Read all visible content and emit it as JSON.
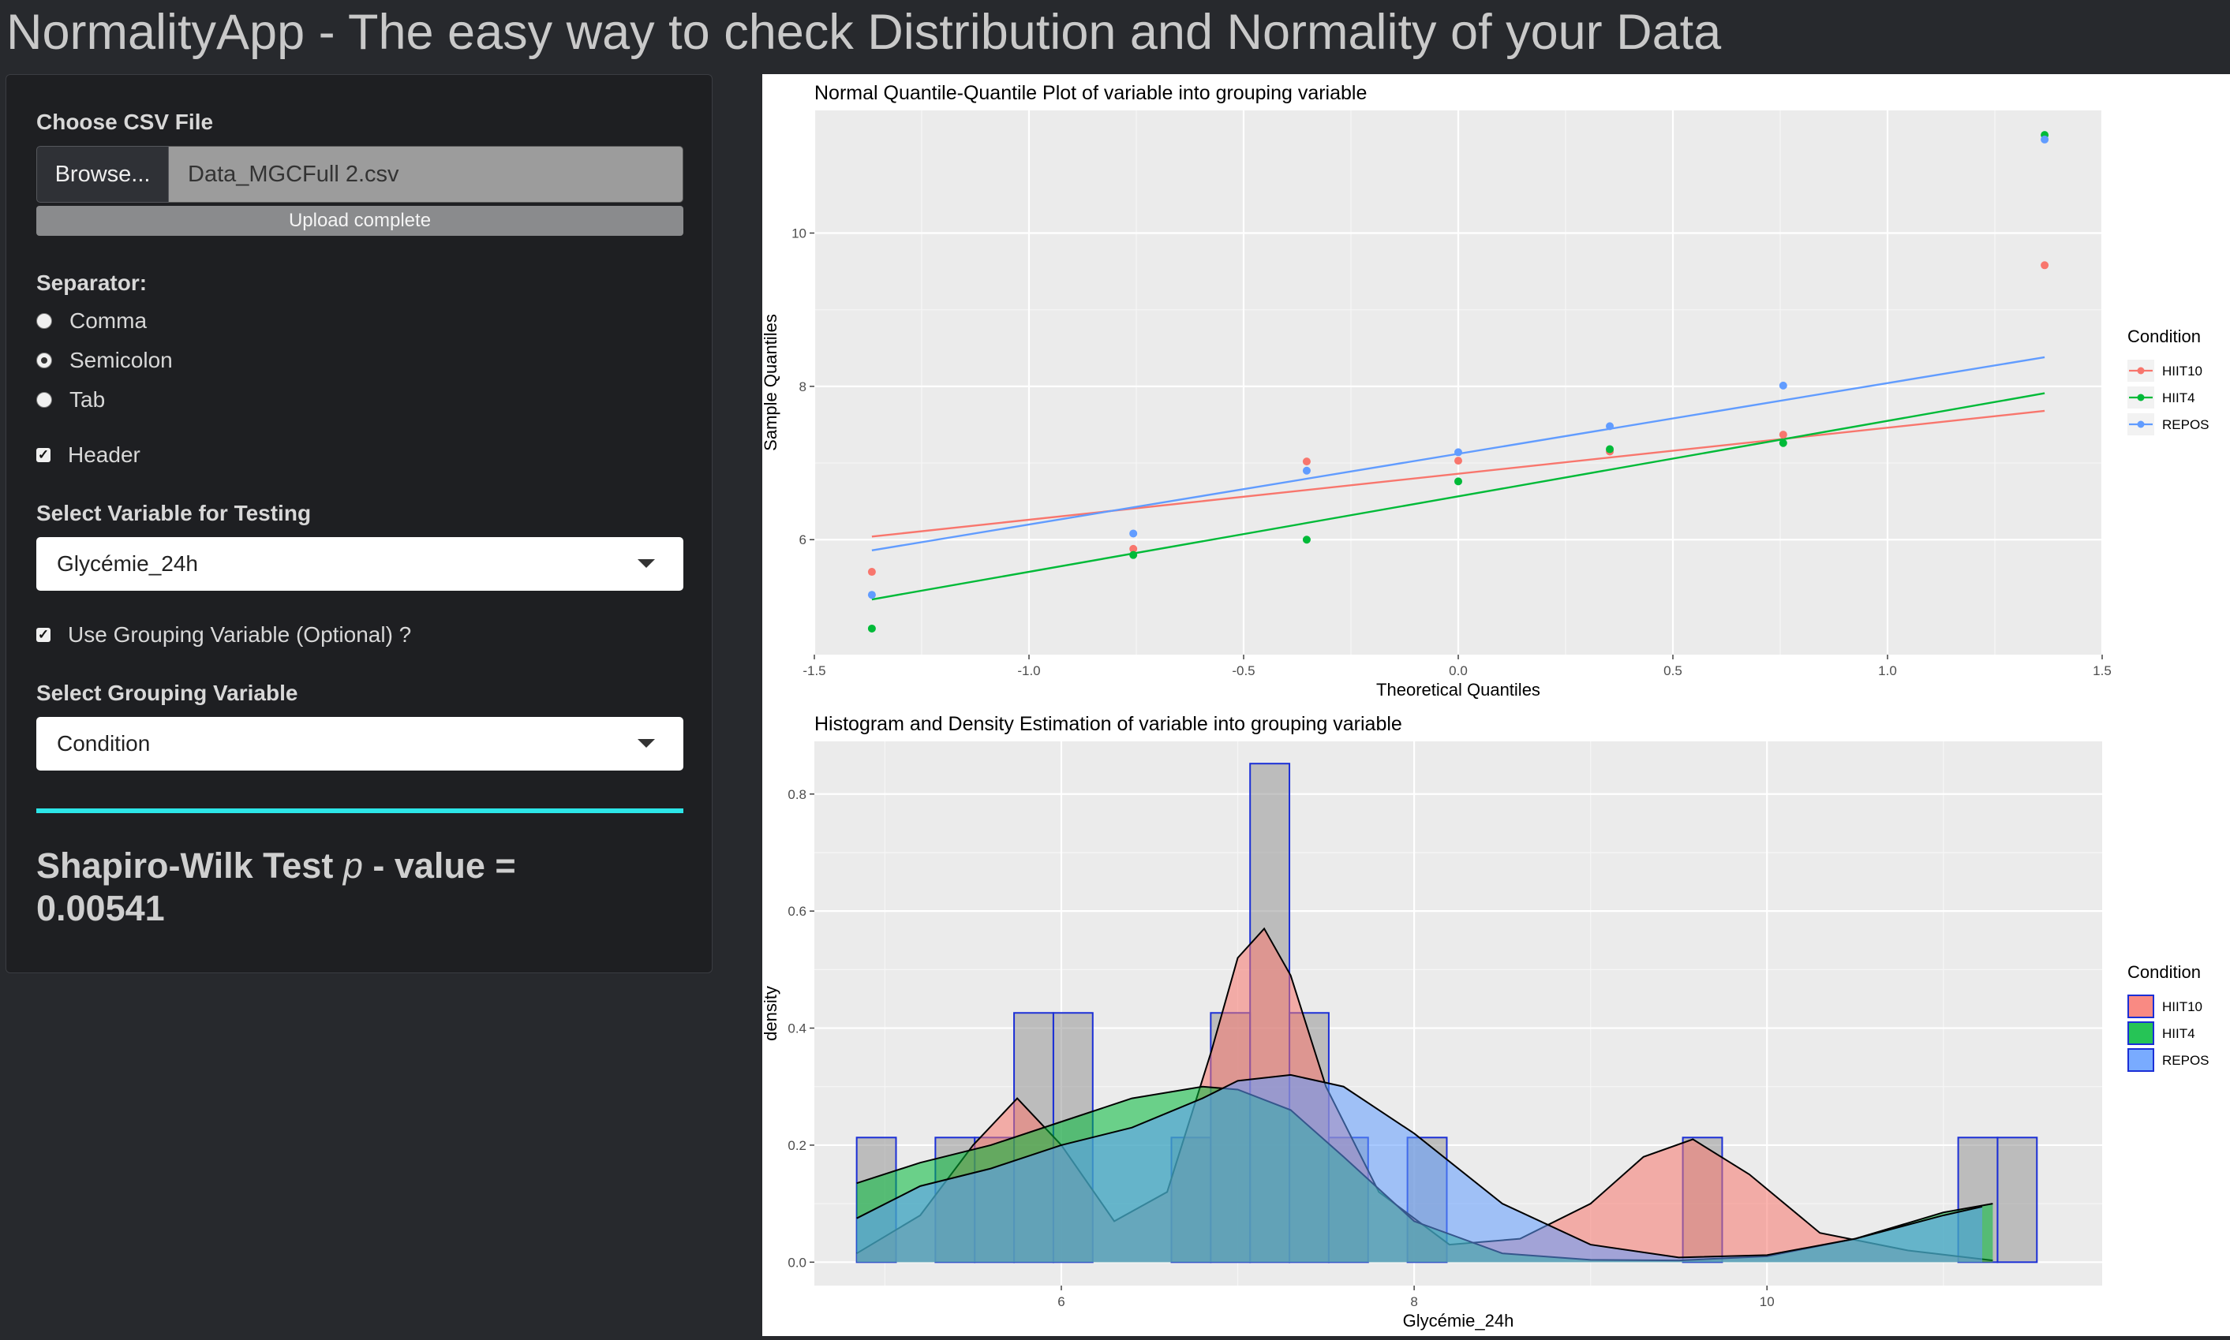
{
  "header": {
    "title": "NormalityApp - The easy way to check Distribution and Normality of your Data"
  },
  "sidebar": {
    "file": {
      "label": "Choose CSV File",
      "browse_label": "Browse...",
      "file_name": "Data_MGCFull 2.csv",
      "progress_text": "Upload complete"
    },
    "separator": {
      "label": "Separator:",
      "options": [
        "Comma",
        "Semicolon",
        "Tab"
      ],
      "selected": "Semicolon"
    },
    "header_checkbox": {
      "label": "Header",
      "checked": true
    },
    "variable": {
      "label": "Select Variable for Testing",
      "value": "Glycémie_24h"
    },
    "grouping_checkbox": {
      "label": "Use Grouping Variable (Optional) ?",
      "checked": true
    },
    "grouping": {
      "label": "Select Grouping Variable",
      "value": "Condition"
    },
    "result": {
      "prefix": "Shapiro-Wilk Test ",
      "p": "p",
      "middle": " - value = ",
      "value": "0.00541"
    },
    "accent_color": "#2ce5e8"
  },
  "chart_data": [
    {
      "type": "scatter",
      "title": "Normal Quantile-Quantile Plot of variable into grouping variable",
      "xlabel": "Theoretical Quantiles",
      "ylabel": "Sample Quantiles",
      "xlim": [
        -1.5,
        1.5
      ],
      "ylim": [
        4.5,
        11.6
      ],
      "xticks": [
        -1.5,
        -1.0,
        -0.5,
        0.0,
        0.5,
        1.0,
        1.5
      ],
      "xtick_labels": [
        "-1.5",
        "-1.0",
        "-0.5",
        "0.0",
        "0.5",
        "1.0",
        "1.5"
      ],
      "yticks": [
        6,
        8,
        10
      ],
      "ytick_labels": [
        "6",
        "8",
        "10"
      ],
      "grid": true,
      "legend": {
        "title": "Condition",
        "position": "right"
      },
      "series": [
        {
          "name": "HIIT10",
          "color": "#f8766d",
          "x": [
            -1.366,
            -0.757,
            -0.353,
            0.0,
            0.353,
            0.757,
            1.366
          ],
          "y": [
            5.58,
            5.88,
            7.02,
            7.03,
            7.15,
            7.37,
            9.58
          ],
          "line": [
            [
              -1.366,
              6.04
            ],
            [
              1.366,
              7.68
            ]
          ]
        },
        {
          "name": "HIIT4",
          "color": "#00ba38",
          "x": [
            -1.366,
            -0.757,
            -0.353,
            0.0,
            0.353,
            0.757,
            1.366
          ],
          "y": [
            4.84,
            5.8,
            6.0,
            6.76,
            7.18,
            7.26,
            11.28
          ],
          "line": [
            [
              -1.366,
              5.22
            ],
            [
              1.366,
              7.91
            ]
          ]
        },
        {
          "name": "REPOS",
          "color": "#619cff",
          "x": [
            -1.366,
            -0.757,
            -0.353,
            0.0,
            0.353,
            0.757,
            1.366
          ],
          "y": [
            5.28,
            6.08,
            6.9,
            7.14,
            7.48,
            8.01,
            11.22
          ],
          "line": [
            [
              -1.366,
              5.86
            ],
            [
              1.366,
              8.38
            ]
          ]
        }
      ]
    },
    {
      "type": "area",
      "title": "Histogram and Density Estimation of variable into grouping variable",
      "xlabel": "Glycémie_24h",
      "ylabel": "density",
      "xlim": [
        4.6,
        11.9
      ],
      "ylim": [
        -0.04,
        0.89
      ],
      "xticks": [
        6,
        8,
        10
      ],
      "xtick_labels": [
        "6",
        "8",
        "10"
      ],
      "yticks": [
        0.0,
        0.2,
        0.4,
        0.6,
        0.8
      ],
      "ytick_labels": [
        "0.0",
        "0.2",
        "0.4",
        "0.6",
        "0.8"
      ],
      "grid": true,
      "legend": {
        "title": "Condition",
        "position": "right"
      },
      "histogram": {
        "bin_width": 0.223,
        "bin_starts": [
          4.84,
          5.063,
          5.286,
          5.509,
          5.732,
          5.955,
          6.178,
          6.401,
          6.624,
          6.847,
          7.07,
          7.293,
          7.516,
          7.739,
          7.962,
          8.185,
          8.408,
          8.631,
          8.854,
          9.077,
          9.3,
          9.523,
          9.746,
          9.969,
          10.192,
          10.415,
          10.638,
          10.861,
          11.084,
          11.307
        ],
        "density": [
          0.213,
          0,
          0.213,
          0.213,
          0.426,
          0.426,
          0,
          0,
          0.213,
          0.426,
          0.852,
          0.426,
          0.213,
          0,
          0.213,
          0,
          0,
          0,
          0,
          0,
          0,
          0.213,
          0,
          0,
          0,
          0,
          0,
          0,
          0.213,
          0.213
        ]
      },
      "series": [
        {
          "name": "HIIT10",
          "color": "#f8766d",
          "x": [
            4.84,
            5.2,
            5.5,
            5.75,
            6.0,
            6.3,
            6.6,
            6.85,
            7.0,
            7.15,
            7.3,
            7.5,
            7.8,
            8.2,
            8.6,
            9.0,
            9.3,
            9.58,
            9.9,
            10.3,
            10.8,
            11.28
          ],
          "y": [
            0.015,
            0.08,
            0.2,
            0.28,
            0.2,
            0.07,
            0.12,
            0.36,
            0.52,
            0.57,
            0.49,
            0.3,
            0.12,
            0.03,
            0.04,
            0.1,
            0.18,
            0.21,
            0.15,
            0.05,
            0.02,
            0.003
          ]
        },
        {
          "name": "HIIT4",
          "color": "#00ba38",
          "x": [
            4.84,
            5.2,
            5.6,
            6.0,
            6.4,
            6.8,
            7.0,
            7.3,
            7.6,
            8.0,
            8.5,
            9.0,
            9.5,
            10.0,
            10.5,
            11.0,
            11.28
          ],
          "y": [
            0.135,
            0.17,
            0.2,
            0.24,
            0.28,
            0.3,
            0.295,
            0.26,
            0.18,
            0.07,
            0.015,
            0.004,
            0.003,
            0.01,
            0.04,
            0.085,
            0.1
          ]
        },
        {
          "name": "REPOS",
          "color": "#619cff",
          "x": [
            4.84,
            5.2,
            5.6,
            6.0,
            6.4,
            6.8,
            7.0,
            7.3,
            7.6,
            8.0,
            8.5,
            9.0,
            9.5,
            10.0,
            10.5,
            11.0,
            11.22
          ],
          "y": [
            0.075,
            0.13,
            0.16,
            0.2,
            0.23,
            0.28,
            0.31,
            0.32,
            0.3,
            0.22,
            0.1,
            0.03,
            0.008,
            0.012,
            0.04,
            0.08,
            0.095
          ]
        }
      ]
    }
  ]
}
